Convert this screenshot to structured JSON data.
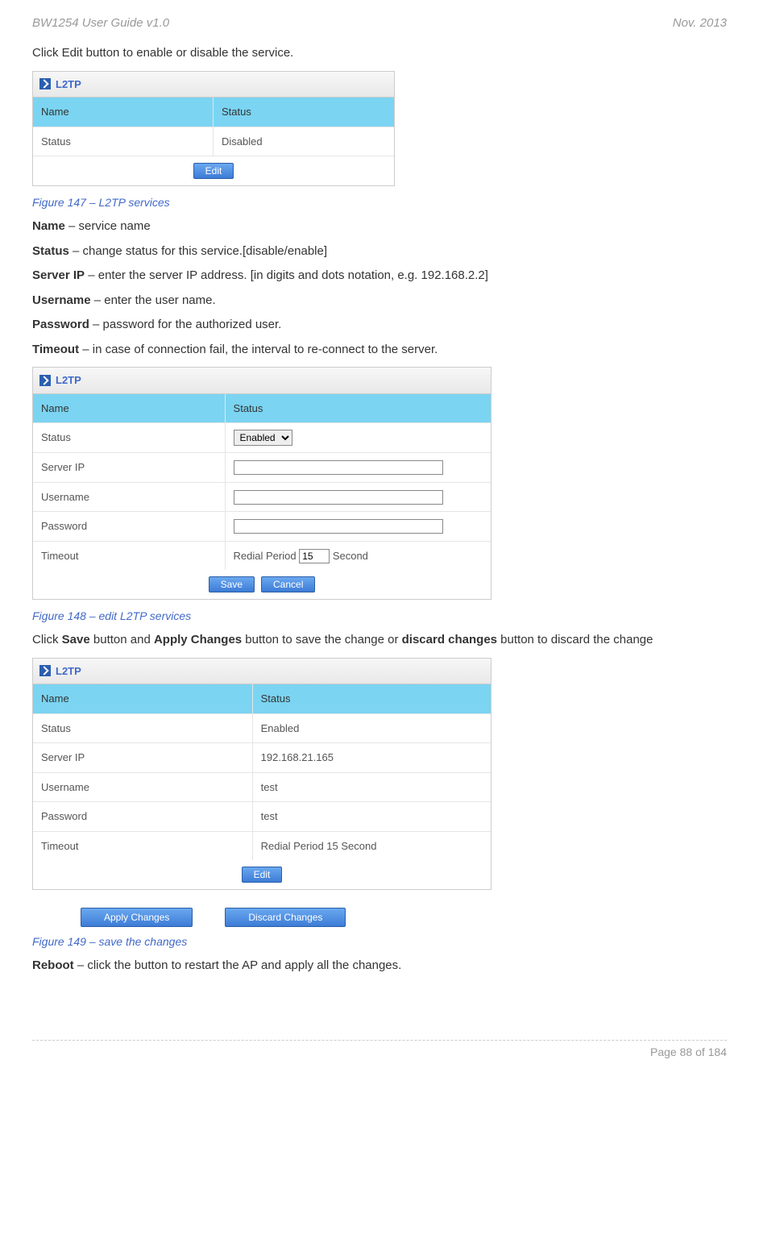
{
  "header": {
    "left": "BW1254 User Guide v1.0",
    "right": "Nov.  2013"
  },
  "intro": "Click Edit button to enable or disable the service.",
  "panel_title": "L2TP",
  "col_left": "Name",
  "col_right": "Status",
  "t1": {
    "rows": [
      {
        "l": "Status",
        "r": "Disabled"
      }
    ],
    "btn": "Edit"
  },
  "fig1": "Figure 147 – L2TP services",
  "defs": [
    {
      "b": "Name",
      "t": " – service name"
    },
    {
      "b": "Status",
      "t": " – change status for this service.[disable/enable]"
    },
    {
      "b": "Server IP",
      "t": " – enter the server IP address. [in digits and dots notation, e.g. 192.168.2.2]"
    },
    {
      "b": "Username",
      "t": " – enter the user name."
    },
    {
      "b": "Password",
      "t": " – password for the authorized user."
    },
    {
      "b": "Timeout",
      "t": " – in case of connection fail, the interval to re-connect to the server."
    }
  ],
  "t2": {
    "rows": [
      {
        "l": "Status",
        "type": "select",
        "val": "Enabled"
      },
      {
        "l": "Server IP",
        "type": "input",
        "val": ""
      },
      {
        "l": "Username",
        "type": "input",
        "val": ""
      },
      {
        "l": "Password",
        "type": "input",
        "val": ""
      },
      {
        "l": "Timeout",
        "type": "timeout",
        "pre": "Redial Period",
        "val": "15",
        "post": "Second"
      }
    ],
    "save": "Save",
    "cancel": "Cancel"
  },
  "fig2": "Figure 148 – edit L2TP services",
  "save_text": {
    "a": "Click ",
    "b": "Save",
    "c": " button and ",
    "d": "Apply Changes",
    "e": " button to save the change or ",
    "f": "discard changes",
    "g": " button to discard the change"
  },
  "t3": {
    "rows": [
      {
        "l": "Status",
        "r": "Enabled"
      },
      {
        "l": "Server IP",
        "r": "192.168.21.165"
      },
      {
        "l": "Username",
        "r": "test"
      },
      {
        "l": "Password",
        "r": "test"
      },
      {
        "l": "Timeout",
        "r": "Redial Period 15 Second"
      }
    ],
    "btn": "Edit",
    "apply": "Apply Changes",
    "discard": "Discard Changes"
  },
  "fig3": "Figure 149 – save the changes",
  "reboot": {
    "b": "Reboot",
    "t": " – click the button to restart the AP and apply all the changes."
  },
  "footer": "Page 88 of 184"
}
